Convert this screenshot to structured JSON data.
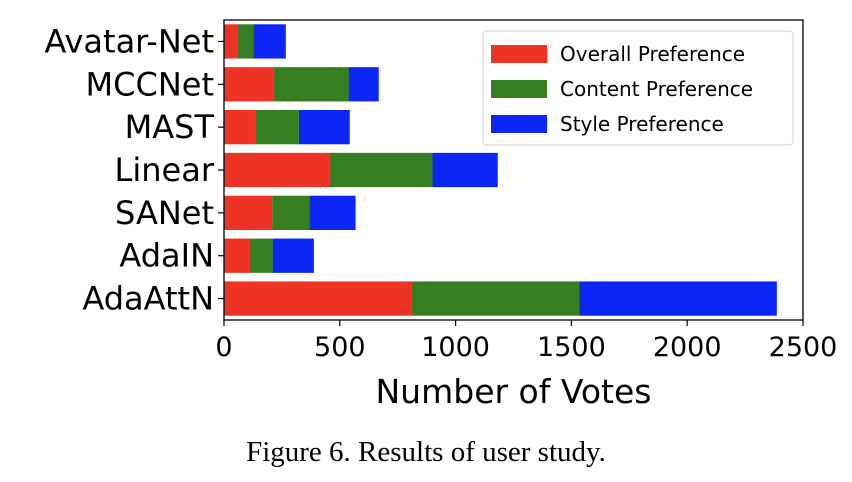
{
  "chart_data": {
    "type": "bar",
    "orientation": "horizontal",
    "stacked": true,
    "categories": [
      "Avatar-Net",
      "MCCNet",
      "MAST",
      "Linear",
      "SANet",
      "AdaIN",
      "AdaAttN"
    ],
    "series": [
      {
        "name": "Overall Preference",
        "color": "#ee3224",
        "values": [
          57,
          213,
          138,
          455,
          208,
          110,
          808
        ]
      },
      {
        "name": "Content Preference",
        "color": "#377d22",
        "values": [
          70,
          325,
          185,
          445,
          160,
          100,
          727
        ]
      },
      {
        "name": "Style Preference",
        "color": "#0c27f5",
        "values": [
          140,
          130,
          220,
          282,
          200,
          178,
          852
        ]
      }
    ],
    "title": "",
    "xlabel": "Number of Votes",
    "ylabel": "",
    "xlim": [
      0,
      2500
    ],
    "xticks": [
      0,
      500,
      1000,
      1500,
      2000,
      2500
    ],
    "grid": false,
    "legend_position": "top-right"
  },
  "caption": "Figure 6. Results of user study."
}
